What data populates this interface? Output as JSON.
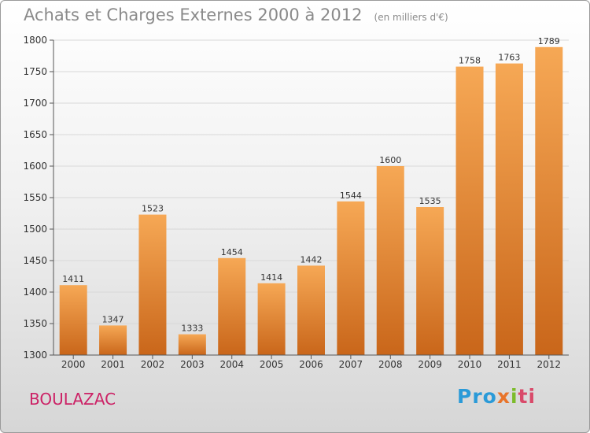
{
  "header": {
    "title": "Achats et Charges Externes 2000 à 2012",
    "unit": "(en milliers d'€)"
  },
  "footer": {
    "commune": "BOULAZAC",
    "logo_text": "Proxiti"
  },
  "colors": {
    "bar_light": "#f6a855",
    "bar_dark": "#c9661a",
    "commune": "#cc2266",
    "title": "#8a8a8a"
  },
  "chart_data": {
    "type": "bar",
    "title": "Achats et Charges Externes 2000 à 2012",
    "subtitle": "(en milliers d'€)",
    "categories": [
      "2000",
      "2001",
      "2002",
      "2003",
      "2004",
      "2005",
      "2006",
      "2007",
      "2008",
      "2009",
      "2010",
      "2011",
      "2012"
    ],
    "values": [
      1411,
      1347,
      1523,
      1333,
      1454,
      1414,
      1442,
      1544,
      1600,
      1535,
      1758,
      1763,
      1789
    ],
    "data_labels": [
      "1411",
      "1347",
      "1523",
      "1333",
      "1454",
      "1414",
      "1442",
      "1544",
      "1600",
      "1535",
      "1758",
      "1763",
      "1789"
    ],
    "yticks": [
      "1300",
      "1350",
      "1400",
      "1450",
      "1500",
      "1550",
      "1600",
      "1650",
      "1700",
      "1750",
      "1800"
    ],
    "ylim": [
      1300,
      1800
    ],
    "grid": true,
    "xlabel": "",
    "ylabel": ""
  }
}
